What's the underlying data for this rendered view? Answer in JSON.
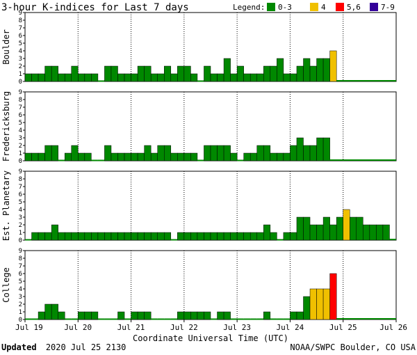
{
  "chart_data": {
    "type": "bar",
    "title": "3-hour K-indices for Last 7 days",
    "legend": {
      "label": "Legend:",
      "items": [
        {
          "label": "0-3",
          "color": "#008800"
        },
        {
          "label": "4",
          "color": "#f0c000"
        },
        {
          "label": "5,6",
          "color": "#ff0000"
        },
        {
          "label": "7-9",
          "color": "#330099"
        }
      ]
    },
    "xlabel": "Coordinate Universal Time (UTC)",
    "x_ticks": [
      "Jul 19",
      "Jul 20",
      "Jul 21",
      "Jul 22",
      "Jul 23",
      "Jul 24",
      "Jul 25",
      "Jul 26"
    ],
    "ylim": [
      0,
      9
    ],
    "y_ticks": [
      "0",
      "1",
      "2",
      "3",
      "4",
      "5",
      "6",
      "7",
      "8",
      "9"
    ],
    "panels": [
      {
        "name": "Boulder",
        "values": [
          1,
          1,
          1,
          2,
          2,
          1,
          1,
          2,
          1,
          1,
          1,
          0,
          2,
          2,
          1,
          1,
          1,
          2,
          2,
          1,
          1,
          2,
          1,
          2,
          2,
          1,
          0,
          2,
          1,
          1,
          3,
          1,
          2,
          1,
          1,
          1,
          2,
          2,
          3,
          1,
          1,
          2,
          3,
          2,
          3,
          3,
          4
        ]
      },
      {
        "name": "Fredericksburg",
        "values": [
          1,
          1,
          1,
          2,
          2,
          0,
          1,
          2,
          1,
          1,
          0,
          0,
          2,
          1,
          1,
          1,
          1,
          1,
          2,
          1,
          2,
          2,
          1,
          1,
          1,
          1,
          0,
          2,
          2,
          2,
          2,
          1,
          0,
          1,
          1,
          2,
          2,
          1,
          1,
          1,
          2,
          3,
          2,
          2,
          3,
          3
        ]
      },
      {
        "name": "Est. Planetary",
        "values": [
          0,
          1,
          1,
          1,
          2,
          1,
          1,
          1,
          1,
          1,
          1,
          1,
          1,
          1,
          1,
          1,
          1,
          1,
          1,
          1,
          1,
          1,
          0,
          1,
          1,
          1,
          1,
          1,
          1,
          1,
          1,
          1,
          1,
          1,
          1,
          1,
          2,
          1,
          0,
          1,
          1,
          3,
          3,
          2,
          2,
          3,
          2,
          3,
          4,
          3,
          3,
          2,
          2,
          2,
          2
        ]
      },
      {
        "name": "College",
        "values": [
          0,
          0,
          1,
          2,
          2,
          1,
          0,
          0,
          1,
          1,
          1,
          0,
          0,
          0,
          1,
          0,
          1,
          1,
          1,
          0,
          0,
          0,
          0,
          1,
          1,
          1,
          1,
          1,
          0,
          1,
          1,
          0,
          0,
          0,
          0,
          0,
          1,
          0,
          0,
          0,
          1,
          1,
          3,
          4,
          4,
          4,
          6
        ]
      }
    ]
  },
  "footer": {
    "updated_label": "Updated",
    "updated_value": "2020 Jul 25 2130",
    "source": "NOAA/SWPC Boulder, CO USA"
  }
}
